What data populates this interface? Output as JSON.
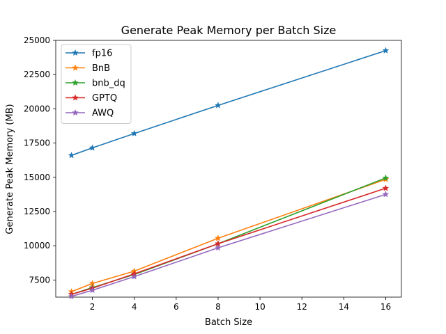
{
  "chart_data": {
    "type": "line",
    "title": "Generate Peak Memory per Batch Size",
    "xlabel": "Batch Size",
    "ylabel": "Generate Peak Memory (MB)",
    "xlim": [
      0.25,
      16.75
    ],
    "ylim": [
      6250,
      25000
    ],
    "xticks": [
      2,
      4,
      6,
      8,
      10,
      12,
      14,
      16
    ],
    "yticks": [
      7500,
      10000,
      12500,
      15000,
      17500,
      20000,
      22500,
      25000
    ],
    "x": [
      1,
      2,
      4,
      8,
      16
    ],
    "legend": "top-left",
    "grid": false,
    "marker": "star",
    "series": [
      {
        "name": "fp16",
        "color": "#1f77b4",
        "values": [
          16600,
          17150,
          18200,
          20250,
          24250
        ]
      },
      {
        "name": "BnB",
        "color": "#ff7f0e",
        "values": [
          6650,
          7250,
          8150,
          10550,
          14850
        ]
      },
      {
        "name": "bnb_dq",
        "color": "#2ca02c",
        "values": [
          6450,
          6950,
          7900,
          10150,
          14950
        ]
      },
      {
        "name": "GPTQ",
        "color": "#d62728",
        "values": [
          6450,
          6900,
          7950,
          10150,
          14200
        ]
      },
      {
        "name": "AWQ",
        "color": "#9467bd",
        "values": [
          6300,
          6750,
          7750,
          9850,
          13750
        ]
      }
    ]
  }
}
